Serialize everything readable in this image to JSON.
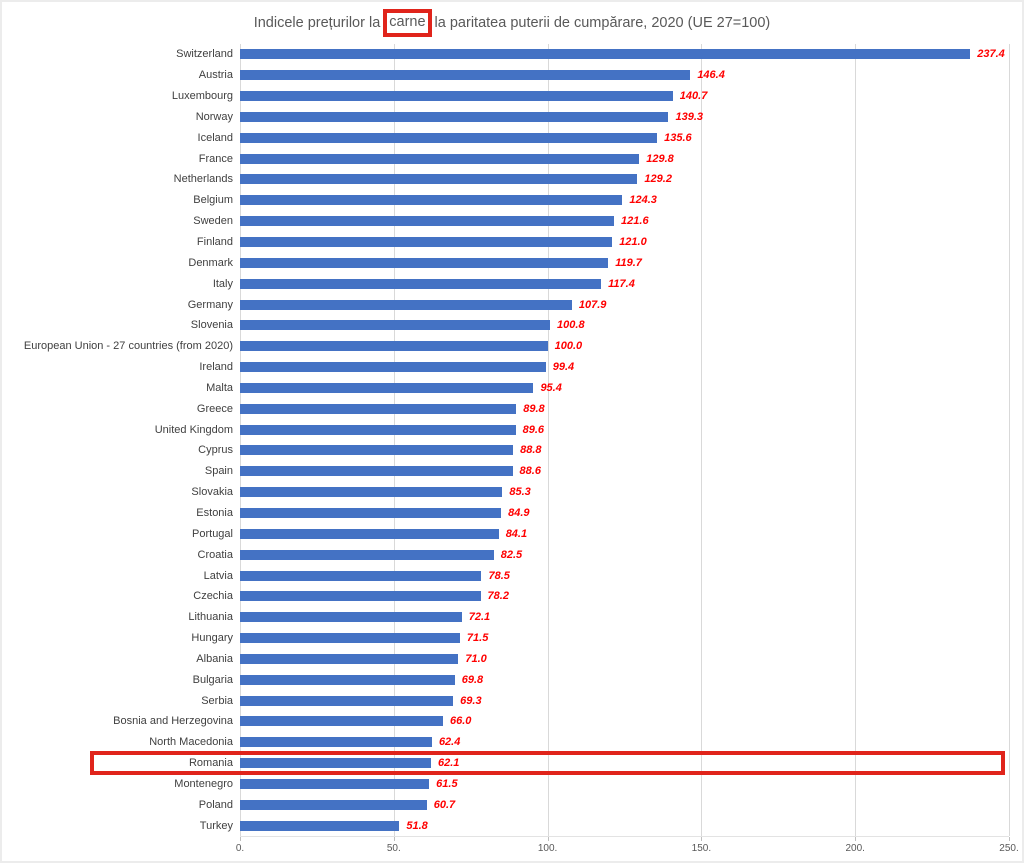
{
  "title": {
    "prefix": "Indicele prețurilor la",
    "highlighted_word": "carne",
    "suffix": "la paritatea puterii de cumpărare, 2020 (UE 27=100)"
  },
  "chart_data": {
    "type": "bar",
    "orientation": "horizontal",
    "title": "Indicele prețurilor la carne la paritatea puterii de cumpărare, 2020 (UE 27=100)",
    "categories": [
      "Switzerland",
      "Austria",
      "Luxembourg",
      "Norway",
      "Iceland",
      "France",
      "Netherlands",
      "Belgium",
      "Sweden",
      "Finland",
      "Denmark",
      "Italy",
      "Germany",
      "Slovenia",
      "European Union - 27 countries (from 2020)",
      "Ireland",
      "Malta",
      "Greece",
      "United Kingdom",
      "Cyprus",
      "Spain",
      "Slovakia",
      "Estonia",
      "Portugal",
      "Croatia",
      "Latvia",
      "Czechia",
      "Lithuania",
      "Hungary",
      "Albania",
      "Bulgaria",
      "Serbia",
      "Bosnia and Herzegovina",
      "North Macedonia",
      "Romania",
      "Montenegro",
      "Poland",
      "Turkey"
    ],
    "values": [
      237.4,
      146.4,
      140.7,
      139.3,
      135.6,
      129.8,
      129.2,
      124.3,
      121.6,
      121.0,
      119.7,
      117.4,
      107.9,
      100.8,
      100.0,
      99.4,
      95.4,
      89.8,
      89.6,
      88.8,
      88.6,
      85.3,
      84.9,
      84.1,
      82.5,
      78.5,
      78.2,
      72.1,
      71.5,
      71.0,
      69.8,
      69.3,
      66.0,
      62.4,
      62.1,
      61.5,
      60.7,
      51.8
    ],
    "xlim": [
      0,
      250
    ],
    "x_tick_labels": [
      "0.",
      "50.",
      "100.",
      "150.",
      "200.",
      "250."
    ],
    "x_tick_values": [
      0,
      50,
      100,
      150,
      200,
      250
    ],
    "grid": true,
    "legend": "none",
    "bar_color": "#4472C4",
    "value_label_color": "#FF0000",
    "annotation_color": "#E0241B",
    "highlighted_category": "Romania"
  }
}
